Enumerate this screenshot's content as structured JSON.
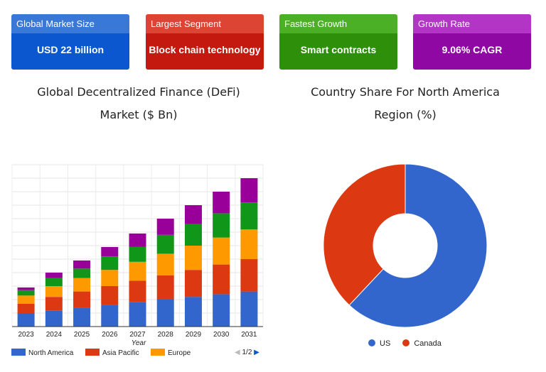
{
  "cards": [
    {
      "title": "Global Market Size",
      "value": "USD 22 billion"
    },
    {
      "title": "Largest Segment",
      "value": "Block chain technology"
    },
    {
      "title": "Fastest Growth",
      "value": "Smart contracts"
    },
    {
      "title": "Growth Rate",
      "value": "9.06% CAGR"
    }
  ],
  "chart_titles": {
    "bar_line1": "Global Decentralized Finance (DeFi)",
    "bar_line2": "Market ($ Bn)",
    "pie_line1": "Country Share For North America",
    "pie_line2": "Region (%)"
  },
  "pager": {
    "prev": "◀",
    "text": "1/2",
    "next": "▶"
  },
  "chart_data": [
    {
      "type": "bar",
      "stacked": true,
      "categories": [
        "2023",
        "2024",
        "2025",
        "2026",
        "2027",
        "2028",
        "2029",
        "2030",
        "2031"
      ],
      "xlabel": "Year",
      "ylabel": "",
      "ylim": [
        0,
        12
      ],
      "grid": true,
      "legend": "bottom",
      "series": [
        {
          "name": "North America",
          "color": "#3366cc",
          "values": [
            1.0,
            1.2,
            1.4,
            1.6,
            1.8,
            2.0,
            2.2,
            2.4,
            2.6
          ]
        },
        {
          "name": "Asia Pacific",
          "color": "#dc3912",
          "values": [
            0.7,
            1.0,
            1.2,
            1.4,
            1.6,
            1.8,
            2.0,
            2.2,
            2.4
          ]
        },
        {
          "name": "Europe",
          "color": "#ff9900",
          "values": [
            0.6,
            0.8,
            1.0,
            1.2,
            1.4,
            1.6,
            1.8,
            2.0,
            2.2
          ]
        },
        {
          "name": "",
          "color": "#109618",
          "values": [
            0.4,
            0.6,
            0.7,
            1.0,
            1.1,
            1.4,
            1.6,
            1.8,
            2.0
          ]
        },
        {
          "name": "",
          "color": "#990099",
          "values": [
            0.2,
            0.4,
            0.6,
            0.7,
            1.0,
            1.2,
            1.4,
            1.6,
            1.8
          ]
        }
      ]
    },
    {
      "type": "pie",
      "donut": true,
      "categories": [
        "US",
        "Canada"
      ],
      "values": [
        62,
        38
      ],
      "colors": [
        "#3366cc",
        "#dc3912"
      ],
      "legend": "bottom"
    }
  ]
}
